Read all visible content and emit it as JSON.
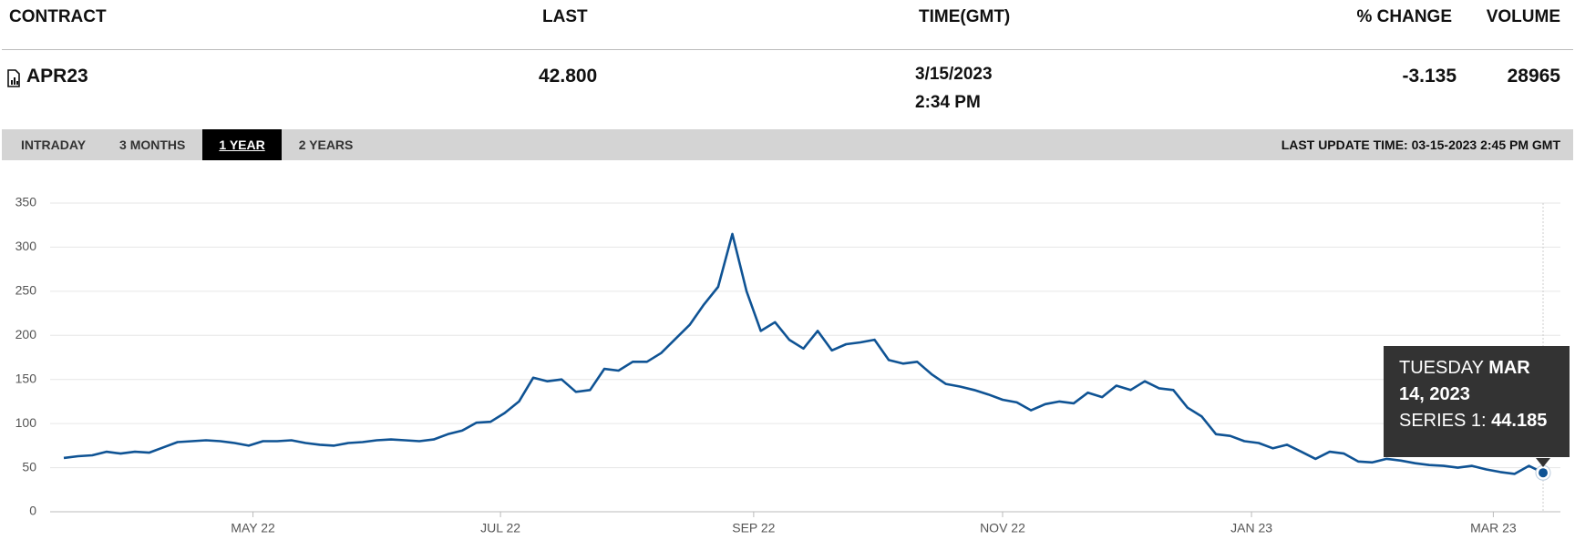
{
  "header": {
    "columns": [
      "CONTRACT",
      "LAST",
      "TIME(GMT)",
      "% CHANGE",
      "VOLUME"
    ]
  },
  "row": {
    "contract": "APR23",
    "last": "42.800",
    "date": "3/15/2023",
    "time": "2:34 PM",
    "change": "-3.135",
    "volume": "28965"
  },
  "tabs": [
    "INTRADAY",
    "3 MONTHS",
    "1 YEAR",
    "2 YEARS"
  ],
  "selected_tab": 2,
  "last_update": "LAST UPDATE TIME: 03-15-2023 2:45 PM GMT",
  "chart_data": {
    "type": "line",
    "color": "#0f5394",
    "values": [
      61,
      63,
      64,
      68,
      66,
      68,
      67,
      73,
      79,
      80,
      81,
      80,
      78,
      75,
      80,
      80,
      81,
      78,
      76,
      75,
      78,
      79,
      81,
      82,
      81,
      80,
      82,
      88,
      92,
      101,
      102,
      112,
      125,
      152,
      148,
      150,
      136,
      138,
      162,
      160,
      170,
      170,
      180,
      196,
      212,
      235,
      255,
      315,
      250,
      205,
      215,
      195,
      185,
      205,
      183,
      190,
      192,
      195,
      172,
      168,
      170,
      156,
      145,
      142,
      138,
      133,
      127,
      124,
      115,
      122,
      125,
      123,
      135,
      130,
      143,
      138,
      148,
      140,
      138,
      118,
      108,
      88,
      86,
      80,
      78,
      72,
      76,
      68,
      60,
      68,
      66,
      57,
      56,
      60,
      58,
      55,
      53,
      52,
      50,
      52,
      48,
      45,
      43,
      52,
      44.185
    ],
    "xlim": [
      0,
      104
    ],
    "xticks": [
      {
        "value": 13.3,
        "label": "MAY 22"
      },
      {
        "value": 30.7,
        "label": "JUL 22"
      },
      {
        "value": 48.5,
        "label": "SEP 22"
      },
      {
        "value": 66,
        "label": "NOV 22"
      },
      {
        "value": 83.5,
        "label": "JAN 23"
      },
      {
        "value": 100.5,
        "label": "MAR 23"
      }
    ],
    "ylim": [
      0,
      350
    ],
    "yticks": [
      0,
      50,
      100,
      150,
      200,
      250,
      300,
      350
    ],
    "grid": true,
    "tooltip": {
      "index": 104,
      "day": "TUESDAY",
      "date": "MAR 14, 2023",
      "label": "SERIES 1:"
    }
  }
}
